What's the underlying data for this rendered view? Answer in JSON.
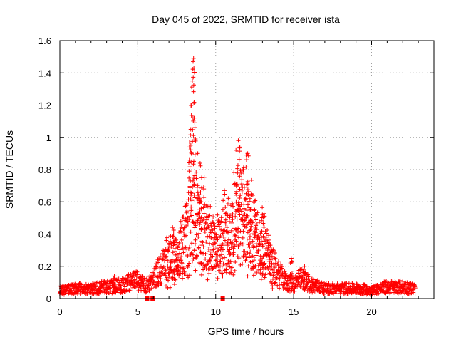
{
  "chart_data": {
    "type": "scatter",
    "title": "Day 045 of 2022, SRMTID for receiver ista",
    "xlabel": "GPS time / hours",
    "ylabel": "SRMTID / TECUs",
    "xlim": [
      0,
      24
    ],
    "ylim": [
      0,
      1.6
    ],
    "x_ticks": [
      0,
      5,
      10,
      15,
      20
    ],
    "y_ticks": [
      0,
      0.2,
      0.4,
      0.6,
      0.8,
      1,
      1.2,
      1.4,
      1.6
    ],
    "x_tick_labels": [
      "0",
      "5",
      "10",
      "15",
      "20"
    ],
    "y_tick_labels": [
      "0",
      "0.2",
      "0.4",
      "0.6",
      "0.8",
      "1",
      "1.2",
      "1.4",
      "1.6"
    ],
    "grid": true,
    "marker": "+",
    "color": "#ff0000",
    "envelope": [
      {
        "x": 0.0,
        "y": 0.05
      },
      {
        "x": 1.0,
        "y": 0.06
      },
      {
        "x": 2.0,
        "y": 0.06
      },
      {
        "x": 3.0,
        "y": 0.07
      },
      {
        "x": 4.0,
        "y": 0.08
      },
      {
        "x": 4.8,
        "y": 0.11
      },
      {
        "x": 5.5,
        "y": 0.08
      },
      {
        "x": 6.0,
        "y": 0.12
      },
      {
        "x": 6.5,
        "y": 0.18
      },
      {
        "x": 7.0,
        "y": 0.22
      },
      {
        "x": 7.5,
        "y": 0.25
      },
      {
        "x": 8.0,
        "y": 0.3
      },
      {
        "x": 8.5,
        "y": 0.55
      },
      {
        "x": 9.0,
        "y": 0.45
      },
      {
        "x": 9.5,
        "y": 0.35
      },
      {
        "x": 10.0,
        "y": 0.3
      },
      {
        "x": 10.5,
        "y": 0.35
      },
      {
        "x": 11.0,
        "y": 0.38
      },
      {
        "x": 11.5,
        "y": 0.5
      },
      {
        "x": 12.0,
        "y": 0.45
      },
      {
        "x": 12.5,
        "y": 0.35
      },
      {
        "x": 13.0,
        "y": 0.3
      },
      {
        "x": 13.5,
        "y": 0.22
      },
      {
        "x": 14.0,
        "y": 0.15
      },
      {
        "x": 14.5,
        "y": 0.1
      },
      {
        "x": 15.0,
        "y": 0.09
      },
      {
        "x": 15.5,
        "y": 0.12
      },
      {
        "x": 16.0,
        "y": 0.09
      },
      {
        "x": 17.0,
        "y": 0.06
      },
      {
        "x": 18.0,
        "y": 0.06
      },
      {
        "x": 19.0,
        "y": 0.06
      },
      {
        "x": 20.0,
        "y": 0.05
      },
      {
        "x": 21.0,
        "y": 0.07
      },
      {
        "x": 22.0,
        "y": 0.07
      },
      {
        "x": 22.8,
        "y": 0.06
      }
    ],
    "peaks": [
      {
        "x": 8.32,
        "y": 0.97
      },
      {
        "x": 8.4,
        "y": 1.05
      },
      {
        "x": 8.47,
        "y": 1.2
      },
      {
        "x": 8.5,
        "y": 1.35
      },
      {
        "x": 8.55,
        "y": 1.47
      },
      {
        "x": 8.58,
        "y": 1.49
      },
      {
        "x": 8.6,
        "y": 1.43
      },
      {
        "x": 8.62,
        "y": 1.12
      },
      {
        "x": 8.7,
        "y": 0.99
      },
      {
        "x": 8.85,
        "y": 0.9
      },
      {
        "x": 9.0,
        "y": 0.84
      },
      {
        "x": 9.1,
        "y": 0.75
      },
      {
        "x": 11.3,
        "y": 0.92
      },
      {
        "x": 11.45,
        "y": 0.98
      },
      {
        "x": 11.55,
        "y": 0.94
      },
      {
        "x": 11.75,
        "y": 0.8
      },
      {
        "x": 11.95,
        "y": 0.89
      },
      {
        "x": 12.05,
        "y": 0.9
      },
      {
        "x": 12.2,
        "y": 0.62
      },
      {
        "x": 12.5,
        "y": 0.55
      },
      {
        "x": 13.0,
        "y": 0.52
      },
      {
        "x": 7.3,
        "y": 0.4
      },
      {
        "x": 7.4,
        "y": 0.37
      },
      {
        "x": 14.85,
        "y": 0.25
      },
      {
        "x": 15.7,
        "y": 0.2
      },
      {
        "x": 3.5,
        "y": 0.14
      }
    ],
    "filled_squares": [
      {
        "x": 5.6,
        "y": 0.0
      },
      {
        "x": 5.95,
        "y": 0.0
      },
      {
        "x": 10.45,
        "y": 0.0
      }
    ]
  }
}
